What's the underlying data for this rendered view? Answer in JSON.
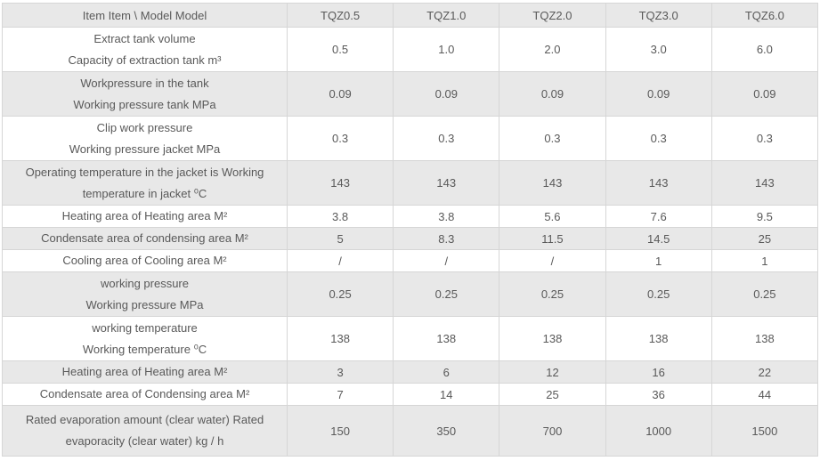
{
  "table": {
    "header": {
      "item_label": "Item Item \\ Model Model",
      "models": [
        "TQZ0.5",
        "TQZ1.0",
        "TQZ2.0",
        "TQZ3.0",
        "TQZ6.0"
      ]
    },
    "rows": [
      {
        "label_lines": [
          "Extract tank volume",
          "Capacity of extraction tank m³"
        ],
        "values": [
          "0.5",
          "1.0",
          "2.0",
          "3.0",
          "6.0"
        ]
      },
      {
        "label_lines": [
          "Workpressure in the tank",
          "Working pressure tank MPa"
        ],
        "values": [
          "0.09",
          "0.09",
          "0.09",
          "0.09",
          "0.09"
        ]
      },
      {
        "label_lines": [
          "Clip work pressure",
          "Working pressure jacket MPa"
        ],
        "values": [
          "0.3",
          "0.3",
          "0.3",
          "0.3",
          "0.3"
        ]
      },
      {
        "label_lines": [
          "Operating temperature in the jacket is Working",
          "temperature in jacket ⁰C"
        ],
        "values": [
          "143",
          "143",
          "143",
          "143",
          "143"
        ]
      },
      {
        "label_lines": [
          "Heating area of Heating area M²"
        ],
        "values": [
          "3.8",
          "3.8",
          "5.6",
          "7.6",
          "9.5"
        ]
      },
      {
        "label_lines": [
          "Condensate area of condensing area M²"
        ],
        "values": [
          "5",
          "8.3",
          "11.5",
          "14.5",
          "25"
        ]
      },
      {
        "label_lines": [
          "Cooling area of Cooling area M²"
        ],
        "values": [
          "/",
          "/",
          "/",
          "1",
          "1"
        ]
      },
      {
        "label_lines": [
          "working pressure",
          "Working pressure MPa"
        ],
        "values": [
          "0.25",
          "0.25",
          "0.25",
          "0.25",
          "0.25"
        ]
      },
      {
        "label_lines": [
          "working temperature",
          "Working temperature ⁰C"
        ],
        "values": [
          "138",
          "138",
          "138",
          "138",
          "138"
        ]
      },
      {
        "label_lines": [
          "Heating area of Heating area M²"
        ],
        "values": [
          "3",
          "6",
          "12",
          "16",
          "22"
        ]
      },
      {
        "label_lines": [
          "Condensate area of Condensing area M²"
        ],
        "values": [
          "7",
          "14",
          "25",
          "36",
          "44"
        ]
      },
      {
        "label_lines": [
          "Rated evaporation amount (clear water) Rated",
          "evaporacity (clear water) kg / h"
        ],
        "values": [
          "150",
          "350",
          "700",
          "1000",
          "1500"
        ]
      }
    ],
    "colors": {
      "stripe_bg": "#e8e8e8",
      "plain_bg": "#ffffff",
      "border": "#d6d6d6",
      "text": "#595959"
    }
  }
}
